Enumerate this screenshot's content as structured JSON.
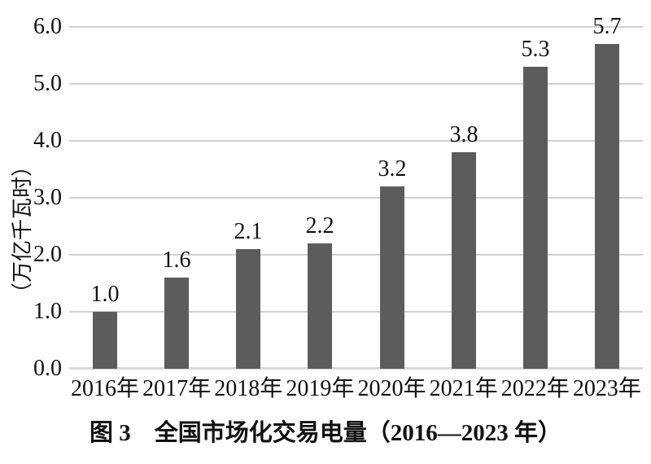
{
  "figure": {
    "caption": "图 3　全国市场化交易电量（2016—2023 年）"
  },
  "chart_data": {
    "type": "bar",
    "title": "图 3　全国市场化交易电量（2016—2023 年）",
    "categories": [
      "2016年",
      "2017年",
      "2018年",
      "2019年",
      "2020年",
      "2021年",
      "2022年",
      "2023年"
    ],
    "values": [
      1.0,
      1.6,
      2.1,
      2.2,
      3.2,
      3.8,
      5.3,
      5.7
    ],
    "data_labels": [
      "1.0",
      "1.6",
      "2.1",
      "2.2",
      "3.2",
      "3.8",
      "5.3",
      "5.7"
    ],
    "xlabel": "",
    "ylabel": "（万亿千瓦时）",
    "ylim": [
      0.0,
      6.0
    ],
    "ytick_interval": 1.0,
    "ytick_labels": [
      "0.0",
      "1.0",
      "2.0",
      "3.0",
      "4.0",
      "5.0",
      "6.0"
    ],
    "grid": "horizontal",
    "legend_position": "none",
    "bar_color": "#5d5c5c",
    "gridline_color": "#d2d2d2",
    "axis_line_color": "#d9d9d9",
    "label_color": "#111111"
  }
}
